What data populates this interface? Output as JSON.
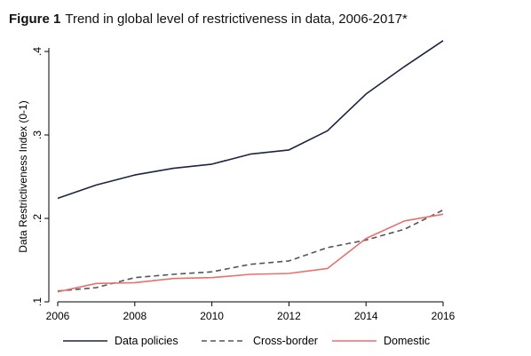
{
  "figure": {
    "label": "Figure 1",
    "title": "Trend in global level of restrictiveness in data, 2006-2017*"
  },
  "chart_data": {
    "type": "line",
    "title": "Trend in global level of restrictiveness in data, 2006-2017*",
    "xlabel": "",
    "ylabel": "Data Restrictiveness Index (0-1)",
    "xlim": [
      2006,
      2016
    ],
    "ylim": [
      0.1,
      0.4
    ],
    "xticks": [
      2006,
      2008,
      2010,
      2012,
      2014,
      2016
    ],
    "xtick_labels": [
      "2006",
      "2008",
      "2010",
      "2012",
      "2014",
      "2016"
    ],
    "yticks": [
      0.1,
      0.2,
      0.3,
      0.4
    ],
    "ytick_labels": [
      ".1",
      ".2",
      ".3",
      ".4"
    ],
    "grid": false,
    "legend": "bottom",
    "x": [
      2006,
      2007,
      2008,
      2009,
      2010,
      2011,
      2012,
      2013,
      2014,
      2015,
      2016
    ],
    "series": [
      {
        "name": "Data policies",
        "color": "#1b2541",
        "dash": "solid",
        "values": [
          0.224,
          0.24,
          0.252,
          0.26,
          0.265,
          0.277,
          0.282,
          0.305,
          0.349,
          0.382,
          0.413
        ]
      },
      {
        "name": "Cross-border",
        "color": "#555555",
        "dash": "dashed",
        "values": [
          0.113,
          0.117,
          0.129,
          0.133,
          0.136,
          0.145,
          0.149,
          0.165,
          0.174,
          0.187,
          0.21
        ]
      },
      {
        "name": "Domestic",
        "color": "#e8706d",
        "dash": "solid",
        "values": [
          0.112,
          0.122,
          0.123,
          0.128,
          0.129,
          0.133,
          0.134,
          0.14,
          0.176,
          0.197,
          0.205
        ]
      }
    ]
  }
}
